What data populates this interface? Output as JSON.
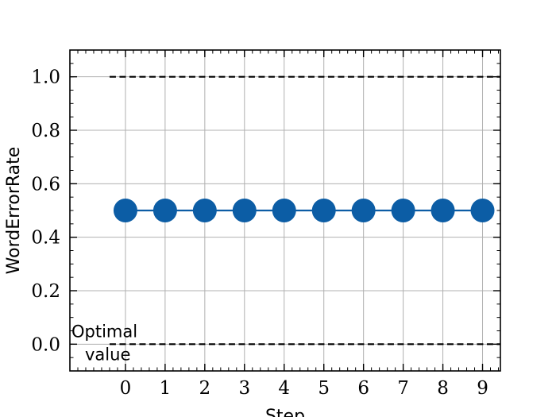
{
  "chart_data": {
    "type": "line",
    "xlabel": "Step",
    "ylabel": "WordErrorRate",
    "xlim": [
      -1.4,
      9.45
    ],
    "ylim": [
      -0.1,
      1.1
    ],
    "x_ticks": [
      0,
      1,
      2,
      3,
      4,
      5,
      6,
      7,
      8,
      9
    ],
    "x_tick_labels": [
      "0",
      "1",
      "2",
      "3",
      "4",
      "5",
      "6",
      "7",
      "8",
      "9"
    ],
    "y_ticks": [
      0.0,
      0.2,
      0.4,
      0.6,
      0.8,
      1.0
    ],
    "y_tick_labels": [
      "0.0",
      "0.2",
      "0.4",
      "0.6",
      "0.8",
      "1.0"
    ],
    "grid": true,
    "series": [
      {
        "x": [
          0,
          1,
          2,
          3,
          4,
          5,
          6,
          7,
          8,
          9
        ],
        "values": [
          0.5,
          0.5,
          0.5,
          0.5,
          0.5,
          0.5,
          0.5,
          0.5,
          0.5,
          0.5
        ],
        "color": "#0C5DA5",
        "marker": "circle"
      }
    ],
    "reference_lines": [
      {
        "y": 1.0,
        "x_range": [
          -0.4,
          9.45
        ],
        "style": "dashed",
        "color": "#000000"
      },
      {
        "y": 0.0,
        "x_range": [
          -0.4,
          9.45
        ],
        "style": "dashed",
        "color": "#000000"
      }
    ],
    "annotations": [
      {
        "text_lines": [
          "Optimal",
          "value"
        ],
        "near_y": 0.0
      }
    ]
  }
}
